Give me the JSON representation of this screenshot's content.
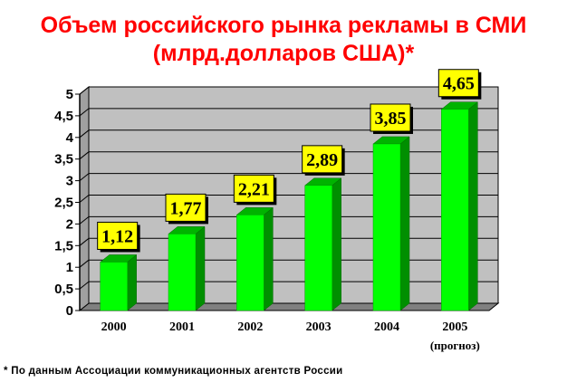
{
  "title": {
    "line1": "Объем российского рынка рекламы в СМИ",
    "line2": "(млрд.долларов США)*"
  },
  "footnote": "* По данным Ассоциации коммуникационных агентств России",
  "colors": {
    "title": "#ff0000",
    "bar_front": "#00ff00",
    "bar_side": "#008f00",
    "bar_top": "#00b300",
    "label_box": "#ffff00",
    "wall": "#c0c0c0"
  },
  "chart_data": {
    "type": "bar",
    "categories": [
      "2000",
      "2001",
      "2002",
      "2003",
      "2004",
      "2005"
    ],
    "category_notes": [
      "",
      "",
      "",
      "",
      "",
      "(прогноз)"
    ],
    "values": [
      1.12,
      1.77,
      2.21,
      2.89,
      3.85,
      4.65
    ],
    "value_labels": [
      "1,12",
      "1,77",
      "2,21",
      "2,89",
      "3,85",
      "4,65"
    ],
    "ylim": [
      0,
      5
    ],
    "yticks": [
      "0",
      "0,5",
      "1",
      "1,5",
      "2",
      "2,5",
      "3",
      "3,5",
      "4",
      "4,5",
      "5"
    ],
    "grid": true,
    "three_d": true
  }
}
